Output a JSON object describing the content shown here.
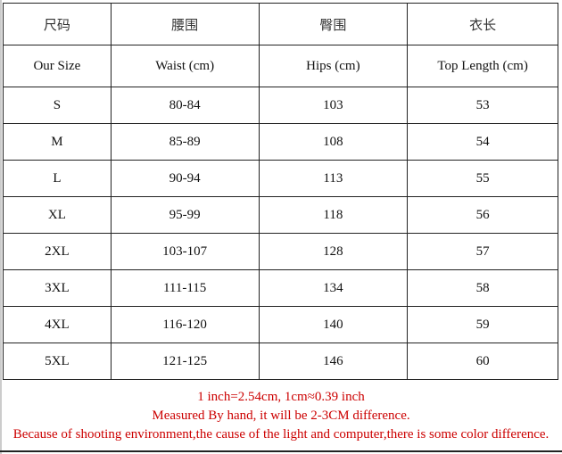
{
  "table": {
    "header_cn": [
      "尺码",
      "腰围",
      "臀围",
      "衣长"
    ],
    "header_en": [
      "Our Size",
      "Waist (cm)",
      "Hips (cm)",
      "Top Length (cm)"
    ],
    "rows": [
      [
        "S",
        "80-84",
        "103",
        "53"
      ],
      [
        "M",
        "85-89",
        "108",
        "54"
      ],
      [
        "L",
        "90-94",
        "113",
        "55"
      ],
      [
        "XL",
        "95-99",
        "118",
        "56"
      ],
      [
        "2XL",
        "103-107",
        "128",
        "57"
      ],
      [
        "3XL",
        "111-115",
        "134",
        "58"
      ],
      [
        "4XL",
        "116-120",
        "140",
        "59"
      ],
      [
        "5XL",
        "121-125",
        "146",
        "60"
      ]
    ]
  },
  "notes": [
    "1 inch=2.54cm, 1cm≈0.39 inch",
    "Measured By hand, it will be 2-3CM difference.",
    "Because of shooting environment,the cause of the light and computer,there is some color difference."
  ],
  "note_color": "#cc0000"
}
